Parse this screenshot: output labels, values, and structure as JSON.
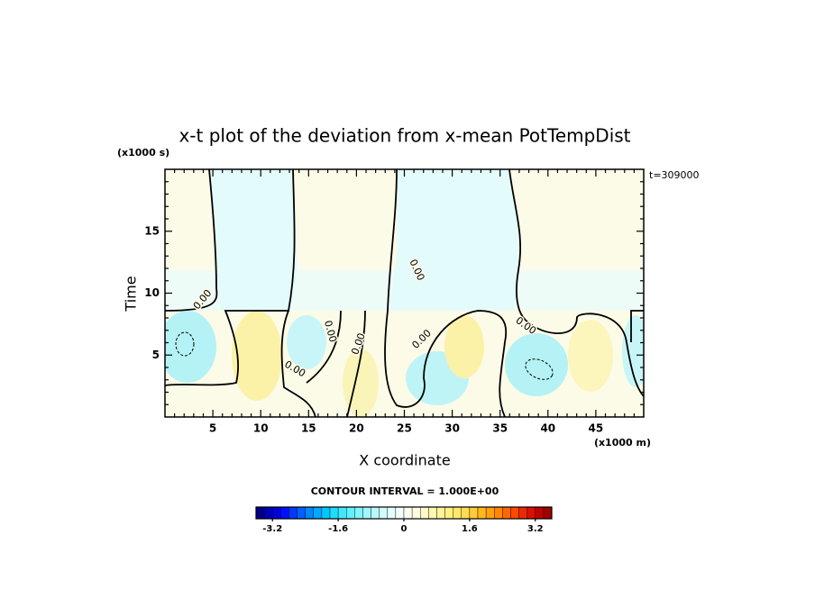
{
  "chart_data": {
    "type": "contour",
    "title": "x-t plot of the deviation from x-mean PotTempDist",
    "x_label": "X coordinate",
    "y_label": "Time",
    "x_unit": "(x1000 m)",
    "y_unit": "(x1000 s)",
    "time_label": "t=309000",
    "xlim": [
      0,
      50
    ],
    "ylim": [
      0,
      20
    ],
    "xticks": [
      5,
      10,
      15,
      20,
      25,
      30,
      35,
      40,
      45
    ],
    "yticks": [
      5,
      10,
      15
    ],
    "contour_labels": [
      "0.00",
      "0.00",
      "0.00",
      "0.00",
      "0.00",
      "0.00",
      "0.00"
    ],
    "contour_interval_label": "CONTOUR INTERVAL = 1.000E+00",
    "colorbar": {
      "lim": [
        -3.6,
        3.6
      ],
      "ticks": [
        -3.2,
        -1.6,
        0,
        1.6,
        3.2
      ],
      "colors": [
        "#00008c",
        "#0000b4",
        "#0000dc",
        "#0010ff",
        "#0038ff",
        "#0060ff",
        "#0088ff",
        "#00a8ff",
        "#00c8ff",
        "#20dcff",
        "#40e8ff",
        "#60f0ff",
        "#80f4ff",
        "#a0f8ff",
        "#b8fafa",
        "#d0fcfc",
        "#e4fdfd",
        "#f4fefe",
        "#fffef0",
        "#fffce0",
        "#fffac8",
        "#fff8b0",
        "#fff498",
        "#fff080",
        "#ffe868",
        "#ffdc50",
        "#ffcc38",
        "#ffb820",
        "#ffa010",
        "#ff8800",
        "#ff6800",
        "#ff4800",
        "#f02800",
        "#d81000",
        "#c00000",
        "#a00000"
      ]
    }
  }
}
